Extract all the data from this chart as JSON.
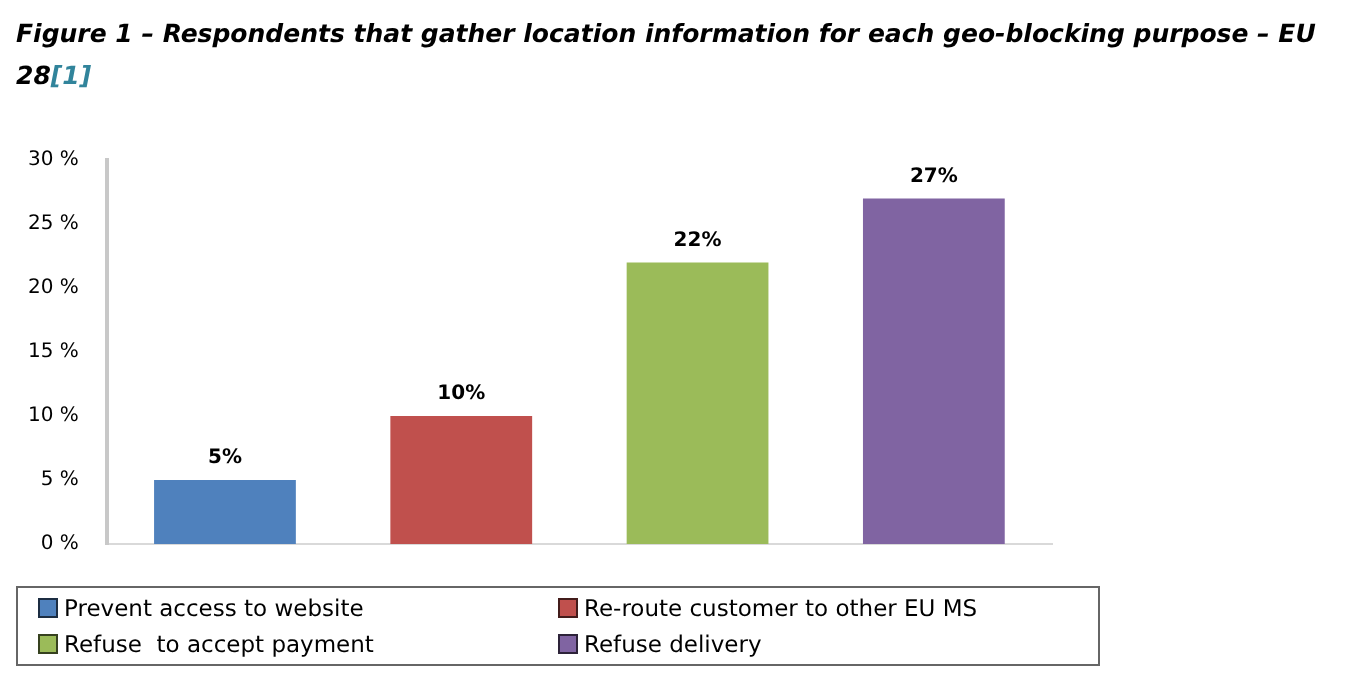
{
  "chart_data": {
    "type": "bar",
    "title": "Figure 1 – Respondents that gather location information for each geo-blocking purpose – EU 28",
    "annotations": [
      "[1]"
    ],
    "categories": [
      null
    ],
    "series": [
      {
        "name": "Prevent access to website",
        "color": "#4f81bd",
        "values": [
          5
        ],
        "value_labels": [
          "5%"
        ]
      },
      {
        "name": "Re-route customer to other EU MS",
        "color": "#c0504d",
        "values": [
          10
        ],
        "value_labels": [
          "10%"
        ]
      },
      {
        "name": "Refuse  to accept payment",
        "color": "#9bbb59",
        "values": [
          22
        ],
        "value_labels": [
          "22%"
        ]
      },
      {
        "name": "Refuse delivery",
        "color": "#8064a2",
        "values": [
          27
        ],
        "value_labels": [
          "27%"
        ]
      }
    ],
    "ylim": [
      0,
      30
    ],
    "yticks": [
      {
        "value": 0,
        "label": "0 %"
      },
      {
        "value": 5,
        "label": "5 %"
      },
      {
        "value": 10,
        "label": "10 %"
      },
      {
        "value": 15,
        "label": "15 %"
      },
      {
        "value": 20,
        "label": "20 %"
      },
      {
        "value": 25,
        "label": "25 %"
      },
      {
        "value": 30,
        "label": "30 %"
      }
    ],
    "tick_labels": "y",
    "grid": false,
    "legend": "bottom"
  }
}
